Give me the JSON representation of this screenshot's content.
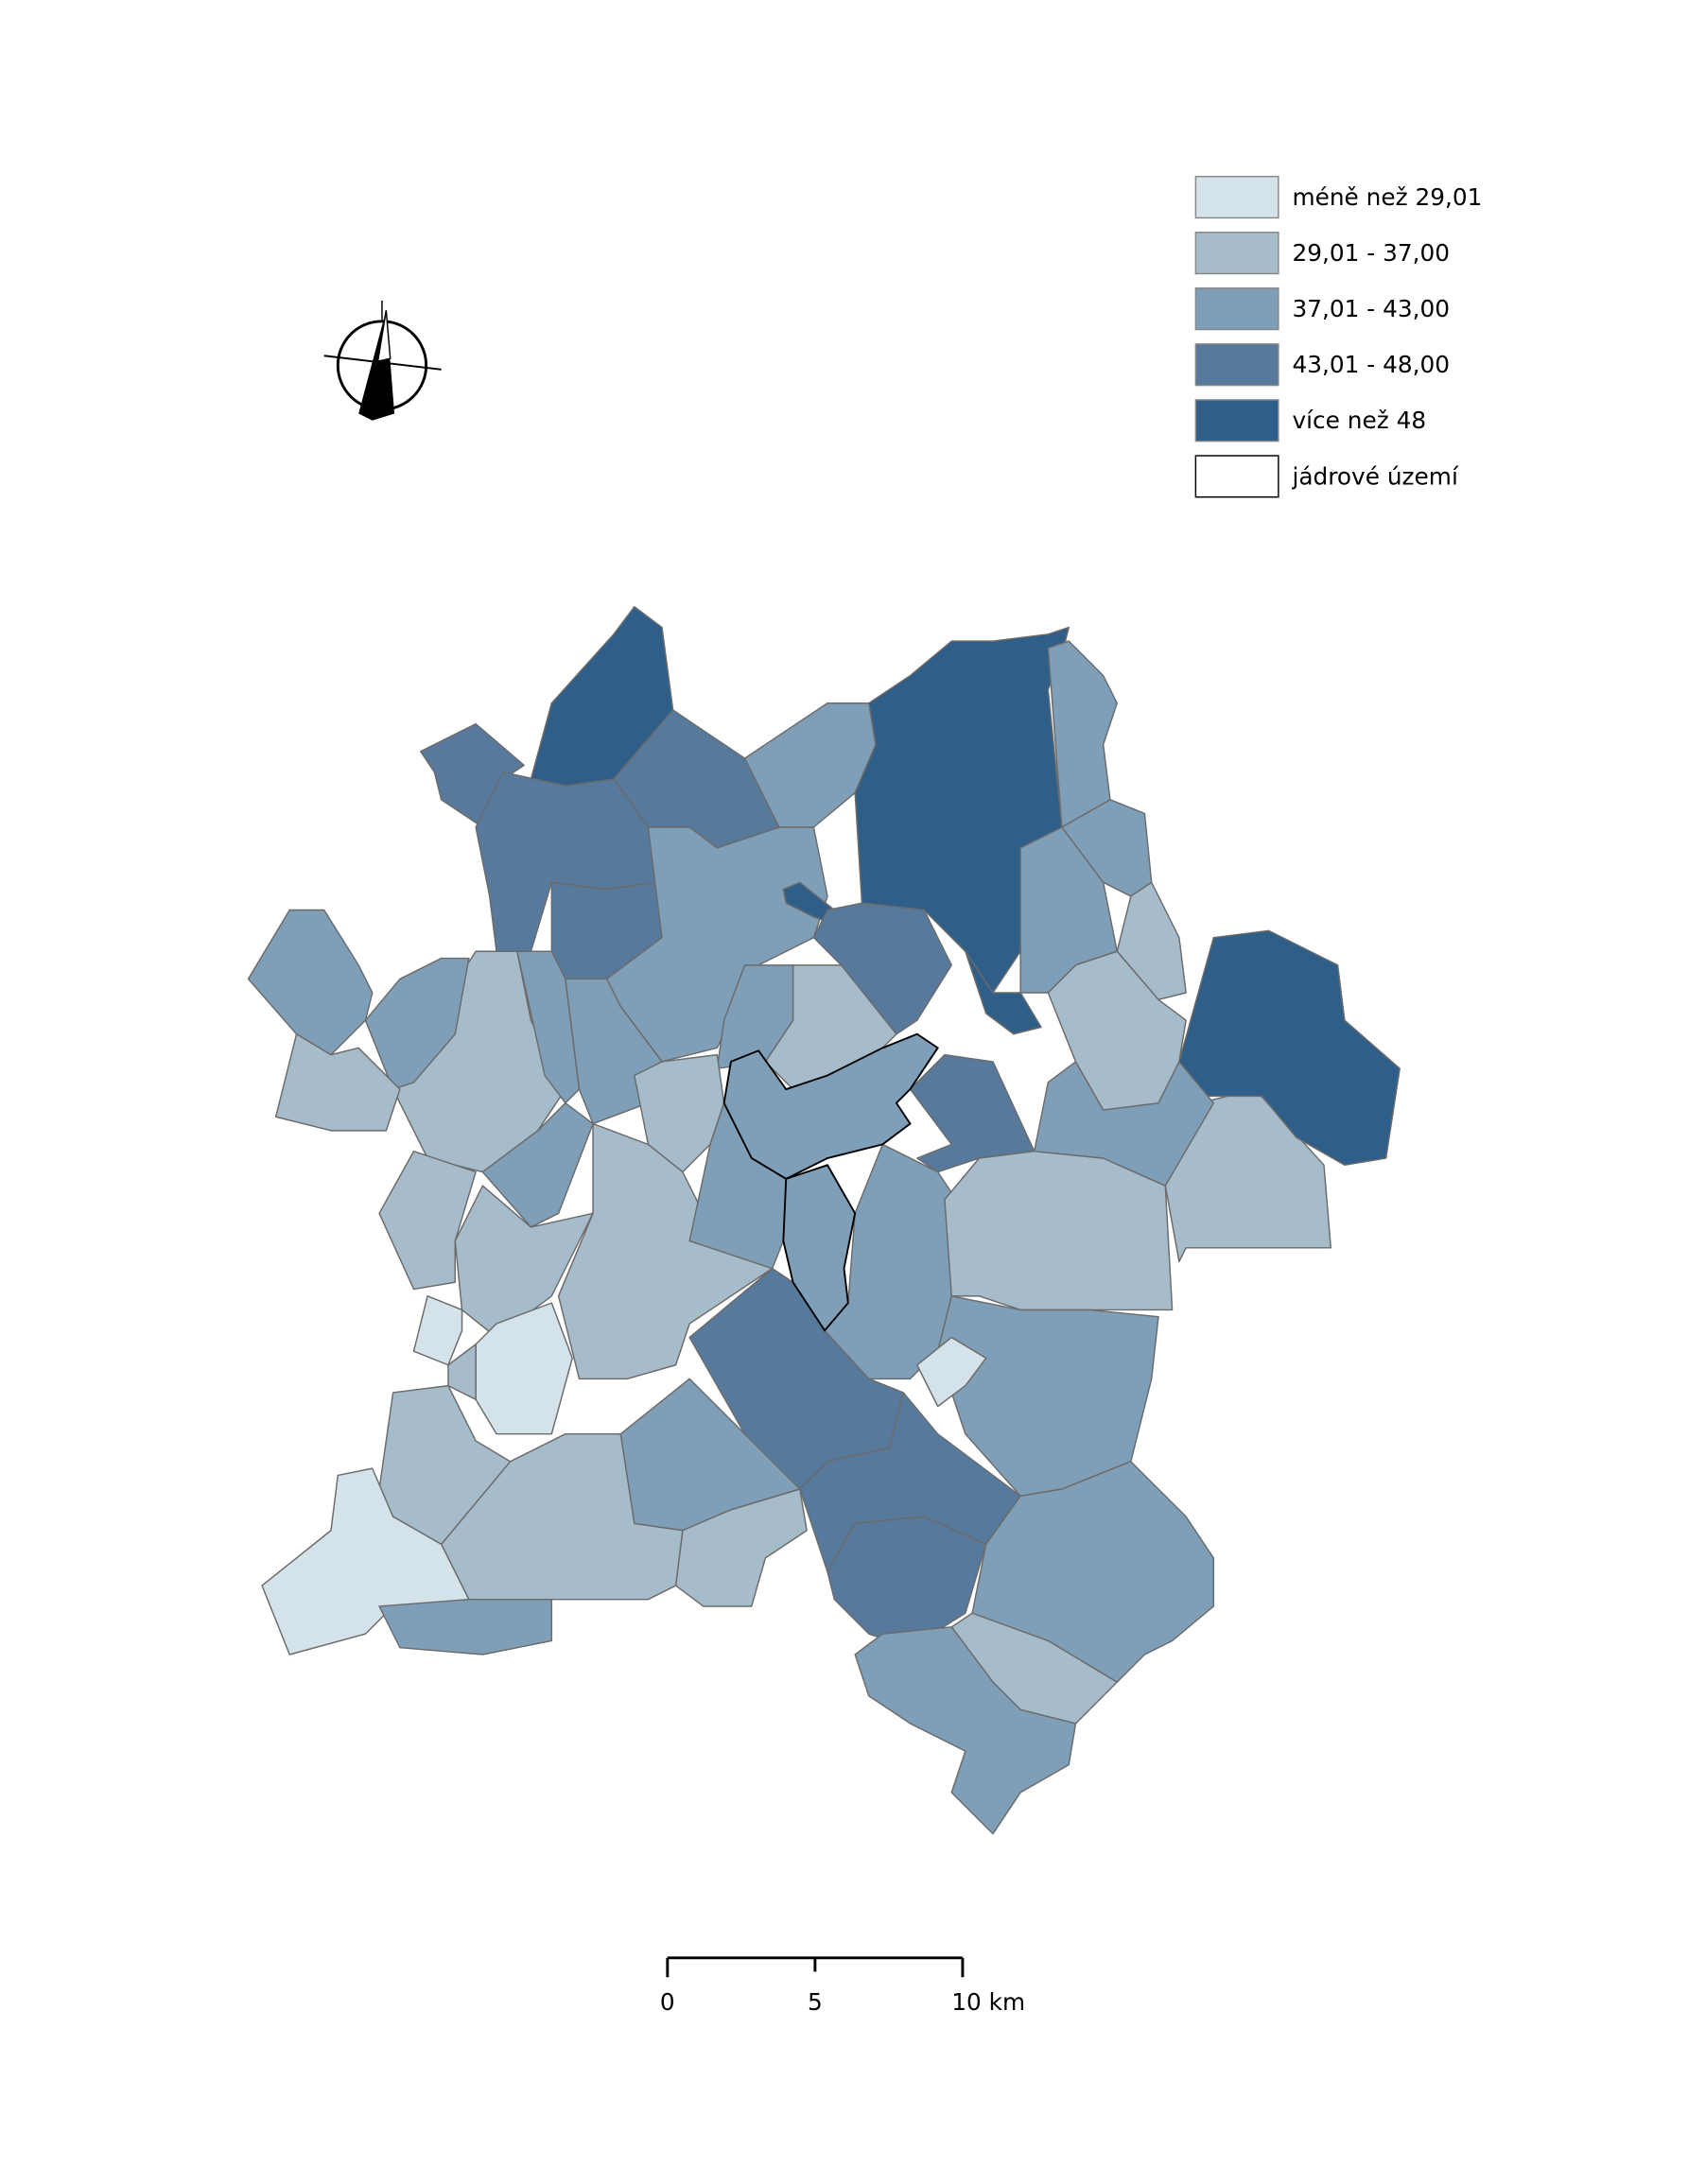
{
  "legend": {
    "items": [
      {
        "label": "méně než 29,01",
        "color": "#d4e3e9"
      },
      {
        "label": "29,01 - 37,00",
        "color": "#a6bccb"
      },
      {
        "label": "37,01 - 43,00",
        "color": "#7f9fb8"
      },
      {
        "label": "43,01 - 48,00",
        "color": "#56799c"
      },
      {
        "label": "více než 48",
        "color": "#2f5f88"
      },
      {
        "label": "jádrové území",
        "color": "#ffffff"
      }
    ]
  },
  "scale_bar": {
    "labels": [
      "0",
      "5",
      "10 km"
    ]
  }
}
